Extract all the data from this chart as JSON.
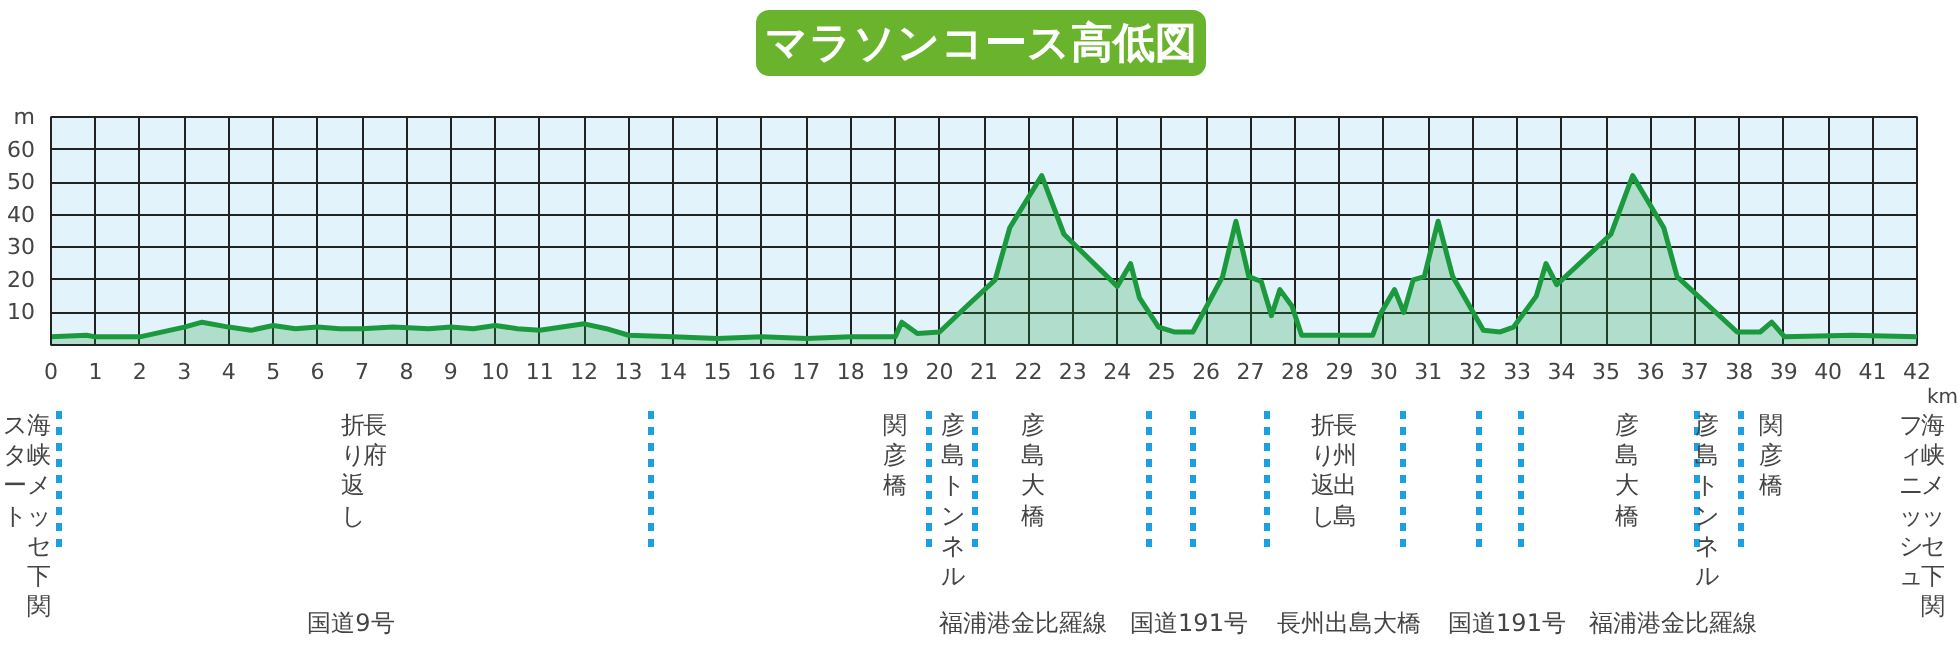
{
  "chart_data": {
    "type": "area",
    "title": "マラソンコース高低図",
    "xlabel": "km",
    "series": [
      {
        "color": "#1a9a3c",
        "x": [
          0,
          0.8,
          1,
          2,
          3,
          3.4,
          4,
          4.5,
          5,
          5.5,
          6,
          6.5,
          7,
          7.7,
          8.5,
          9,
          9.5,
          10,
          10.5,
          11,
          11.5,
          12,
          12.5,
          13,
          14,
          15,
          16,
          17,
          18,
          19,
          19.15,
          19.5,
          20,
          20.58,
          21.25,
          21.58,
          22.3,
          22.8,
          24.0,
          24.3,
          24.5,
          24.93,
          25.28,
          25.7,
          26.37,
          26.67,
          26.96,
          27.24,
          27.47,
          27.66,
          27.93,
          28.15,
          29.75,
          29.94,
          30.24,
          30.45,
          30.66,
          30.91,
          31.22,
          31.55,
          32.24,
          32.62,
          32.92,
          33.43,
          33.65,
          33.89,
          35.11,
          35.6,
          36.3,
          36.6,
          37.95,
          38.47,
          38.73,
          39.02,
          40.55,
          42
        ],
        "values": [
          2.5,
          3,
          2.5,
          2.5,
          5.5,
          7,
          5.5,
          4.5,
          6,
          5,
          5.5,
          5,
          5,
          5.5,
          5,
          5.5,
          5,
          6,
          5,
          4.5,
          5.5,
          6.5,
          5,
          3,
          2.5,
          2,
          2.5,
          2,
          2.5,
          2.5,
          7,
          3.5,
          4,
          11.5,
          20,
          36,
          52,
          34,
          18,
          25,
          14.5,
          5.5,
          4,
          4,
          21,
          38,
          21,
          19.5,
          9,
          17,
          12,
          3,
          3,
          10,
          17,
          10,
          20,
          21,
          38,
          21,
          4.5,
          4,
          5.5,
          15,
          25,
          18.5,
          34,
          52,
          36,
          21,
          4,
          4,
          7,
          2.5,
          3,
          2.5
        ]
      }
    ],
    "xlim": [
      0,
      42
    ],
    "ylim": [
      0,
      70
    ],
    "xticks": [
      0,
      1,
      2,
      3,
      4,
      5,
      6,
      7,
      8,
      9,
      10,
      11,
      12,
      13,
      14,
      15,
      16,
      17,
      18,
      19,
      20,
      21,
      22,
      23,
      24,
      25,
      26,
      27,
      28,
      29,
      30,
      31,
      32,
      33,
      34,
      35,
      36,
      37,
      38,
      39,
      40,
      41,
      42
    ],
    "yticks": [
      10,
      20,
      30,
      40,
      50,
      60,
      {
        "value": 70,
        "label": "m"
      }
    ],
    "grid": true,
    "annotations": [
      "海峡メッセ下関",
      "スタート",
      "長府",
      "折り返し",
      "関彦橋",
      "彦島トンネル",
      "彦島大橋",
      "長州出島",
      "折り返し",
      "彦島大橋",
      "彦島トンネル",
      "関彦橋",
      "海峡メッセ下関",
      "フィニッシュ",
      "国道9号",
      "福浦港金比羅線",
      "国道191号",
      "長州出島大橋",
      "国道191号",
      "福浦港金比羅線"
    ]
  }
}
